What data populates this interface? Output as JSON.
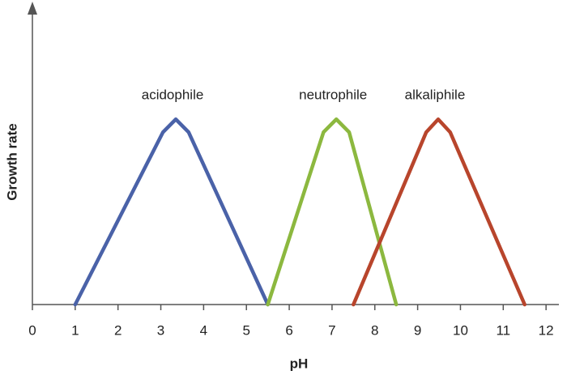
{
  "chart_data": {
    "type": "line",
    "x_label": "pH",
    "y_label": "Growth rate",
    "xlim": [
      0,
      12.3
    ],
    "xticks": [
      0,
      1,
      2,
      3,
      4,
      5,
      6,
      7,
      8,
      9,
      10,
      11,
      12
    ],
    "ylim": [
      0,
      1.6
    ],
    "series": [
      {
        "name": "acidophile",
        "color": "#4a62a8",
        "x": [
          1,
          3.05,
          3.35,
          3.65,
          5.5
        ],
        "values": [
          0,
          0.93,
          1,
          0.93,
          0
        ]
      },
      {
        "name": "neutrophile",
        "color": "#8cb83f",
        "x": [
          5.5,
          6.8,
          7.1,
          7.4,
          8.5
        ],
        "values": [
          0,
          0.93,
          1,
          0.93,
          0
        ]
      },
      {
        "name": "alkaliphile",
        "color": "#b8452c",
        "x": [
          7.5,
          9.2,
          9.48,
          9.76,
          11.5
        ],
        "values": [
          0,
          0.93,
          1,
          0.93,
          0
        ]
      }
    ]
  }
}
